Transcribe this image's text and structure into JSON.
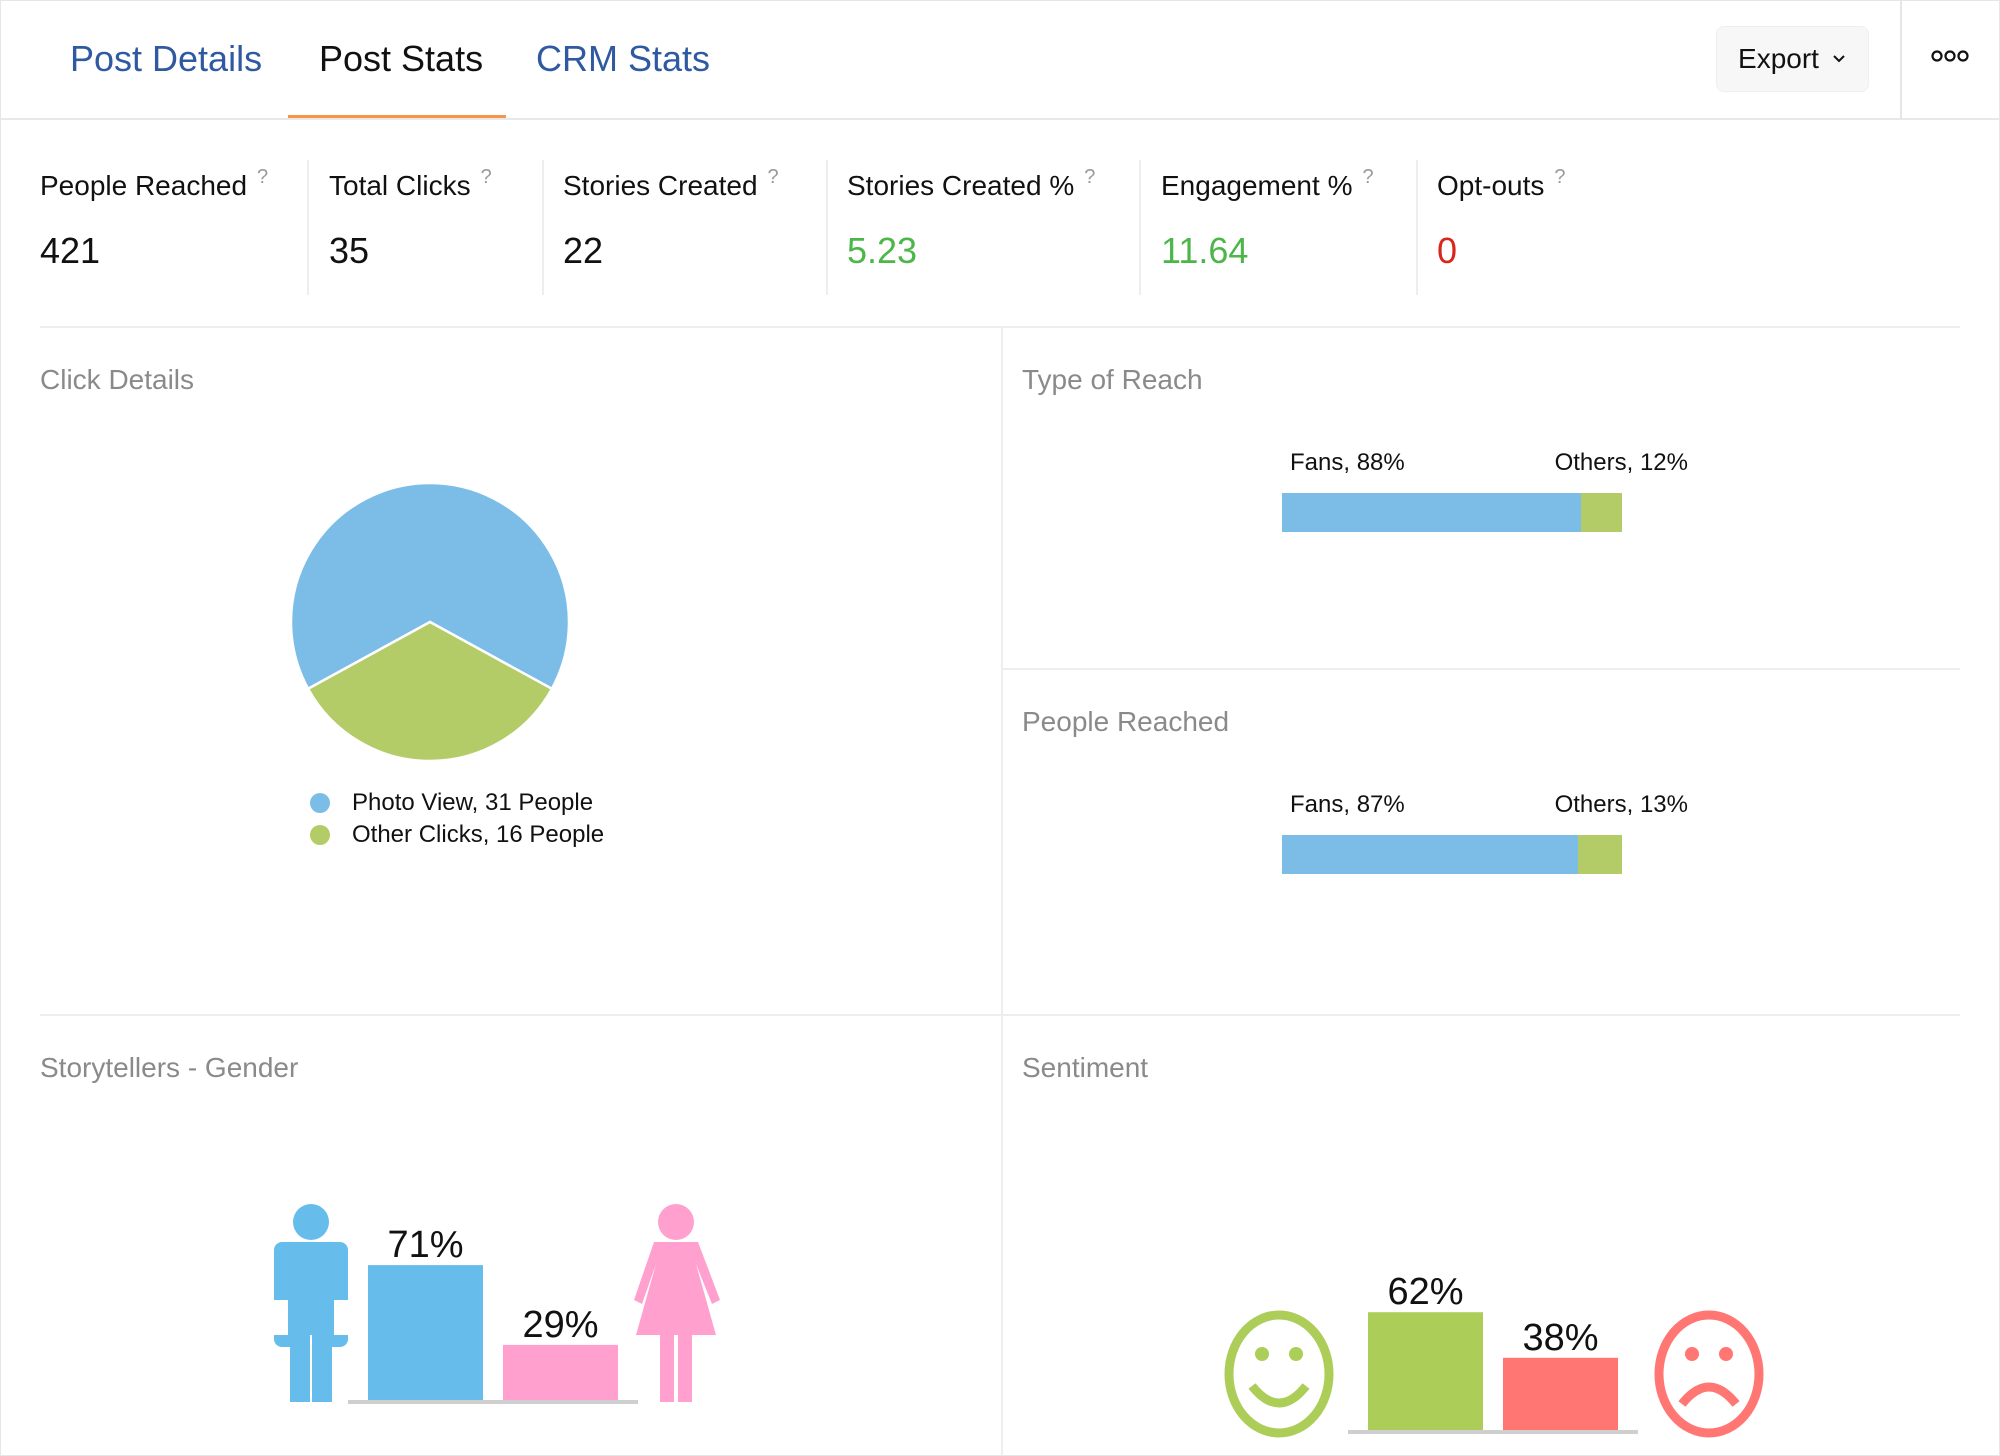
{
  "tabs": [
    {
      "label": "Post Details",
      "active": false
    },
    {
      "label": "Post Stats",
      "active": true
    },
    {
      "label": "CRM Stats",
      "active": false
    }
  ],
  "header": {
    "export_label": "Export",
    "export_icon": "chevron-down-icon",
    "more_icon": "more-dots-icon"
  },
  "colors": {
    "tab_link": "#2f5aa1",
    "tab_active_underline": "#f5954a",
    "positive": "#4cb648",
    "negative": "#d9251c",
    "blue": "#7cbde8",
    "green": "#b4cc67",
    "male": "#66bdec",
    "female": "#ffa0cf",
    "happy": "#acce59",
    "sad": "#ff7672"
  },
  "stats": [
    {
      "label": "People Reached",
      "help": "?",
      "value": "421",
      "tone": "neutral"
    },
    {
      "label": "Total Clicks",
      "help": "?",
      "value": "35",
      "tone": "neutral"
    },
    {
      "label": "Stories Created",
      "help": "?",
      "value": "22",
      "tone": "neutral"
    },
    {
      "label": "Stories Created %",
      "help": "?",
      "value": "5.23",
      "tone": "positive"
    },
    {
      "label": "Engagement %",
      "help": "?",
      "value": "11.64",
      "tone": "positive"
    },
    {
      "label": "Opt-outs",
      "help": "?",
      "value": "0",
      "tone": "negative"
    }
  ],
  "sections": {
    "click_details": "Click Details",
    "type_of_reach": "Type of Reach",
    "people_reached": "People Reached",
    "gender": "Storytellers - Gender",
    "sentiment": "Sentiment"
  },
  "chart_data": [
    {
      "id": "click_details",
      "type": "pie",
      "title": "Click Details",
      "legend": "bottom",
      "slices": [
        {
          "label": "Photo View, 31 People",
          "name": "Photo View",
          "value": 31,
          "color": "#7cbde8"
        },
        {
          "label": "Other Clicks, 16 People",
          "name": "Other Clicks",
          "value": 16,
          "color": "#b4cc67"
        }
      ]
    },
    {
      "id": "type_of_reach",
      "type": "bar",
      "stacked": true,
      "orientation": "horizontal",
      "title": "Type of Reach",
      "segments": [
        {
          "label": "Fans, 88%",
          "name": "Fans",
          "value": 88,
          "color": "#7cbde8"
        },
        {
          "label": "Others, 12%",
          "name": "Others",
          "value": 12,
          "color": "#b4cc67"
        }
      ]
    },
    {
      "id": "people_reached",
      "type": "bar",
      "stacked": true,
      "orientation": "horizontal",
      "title": "People Reached",
      "segments": [
        {
          "label": "Fans, 87%",
          "name": "Fans",
          "value": 87,
          "color": "#7cbde8"
        },
        {
          "label": "Others, 13%",
          "name": "Others",
          "value": 13,
          "color": "#b4cc67"
        }
      ]
    },
    {
      "id": "gender",
      "type": "bar",
      "title": "Storytellers - Gender",
      "categories": [
        "Male",
        "Female"
      ],
      "values": [
        71,
        29
      ],
      "labels": [
        "71%",
        "29%"
      ],
      "colors": [
        "#66bdec",
        "#ffa0cf"
      ],
      "ylim": [
        0,
        100
      ]
    },
    {
      "id": "sentiment",
      "type": "bar",
      "title": "Sentiment",
      "categories": [
        "Positive",
        "Negative"
      ],
      "values": [
        62,
        38
      ],
      "labels": [
        "62%",
        "38%"
      ],
      "colors": [
        "#acce59",
        "#ff7672"
      ],
      "ylim": [
        0,
        100
      ]
    }
  ]
}
